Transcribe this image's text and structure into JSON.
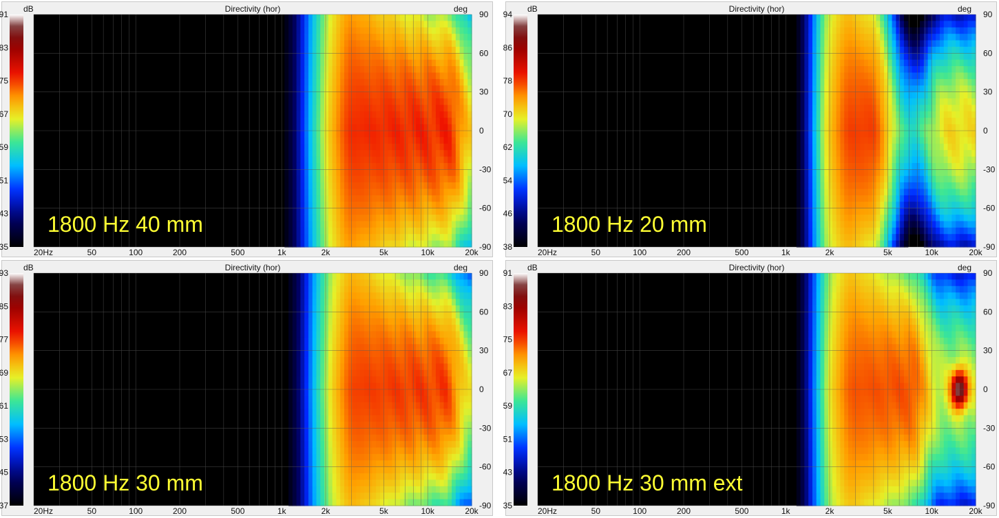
{
  "chart_data": [
    {
      "type": "heatmap",
      "title": "Directivity (hor)",
      "label": "1800 Hz 40 mm",
      "colorbar": {
        "unit": "dB",
        "ticks": [
          91,
          83,
          75,
          67,
          59,
          51,
          43,
          35
        ],
        "range": [
          35,
          91
        ]
      },
      "x": {
        "scale": "log",
        "range": [
          20,
          20000
        ],
        "tick_values": [
          20,
          50,
          100,
          200,
          500,
          1000,
          2000,
          5000,
          10000,
          20000
        ],
        "tick_labels": [
          "20Hz",
          "50",
          "100",
          "200",
          "500",
          "1k",
          "2k",
          "5k",
          "10k",
          "20k"
        ]
      },
      "y": {
        "unit": "deg",
        "range": [
          -90,
          90
        ],
        "tick_values": [
          90,
          60,
          30,
          0,
          -30,
          -60,
          -90
        ],
        "tick_labels": [
          "90",
          "60",
          "30",
          "0",
          "-30",
          "-60",
          "-90"
        ]
      },
      "response": {
        "onset_hz": 950,
        "peak_from_hz": 2200,
        "peak_to_hz": 17000,
        "peak_db": 84,
        "beam_narrowing": 0.3,
        "hot_spot_hz": 0
      }
    },
    {
      "type": "heatmap",
      "title": "Directivity (hor)",
      "label": "1800 Hz 20 mm",
      "colorbar": {
        "unit": "dB",
        "ticks": [
          94,
          86,
          78,
          70,
          62,
          54,
          46,
          38
        ],
        "range": [
          38,
          94
        ]
      },
      "x": {
        "scale": "log",
        "range": [
          20,
          20000
        ],
        "tick_values": [
          20,
          50,
          100,
          200,
          500,
          1000,
          2000,
          5000,
          10000,
          20000
        ],
        "tick_labels": [
          "20Hz",
          "50",
          "100",
          "200",
          "500",
          "1k",
          "2k",
          "5k",
          "10k",
          "20k"
        ]
      },
      "y": {
        "unit": "deg",
        "range": [
          -90,
          90
        ],
        "tick_values": [
          90,
          60,
          30,
          0,
          -30,
          -60,
          -90
        ],
        "tick_labels": [
          "90",
          "60",
          "30",
          "0",
          "-30",
          "-60",
          "-90"
        ]
      },
      "response": {
        "onset_hz": 1100,
        "peak_from_hz": 2000,
        "peak_to_hz": 4800,
        "peak_db": 86,
        "beam_narrowing": 0.5,
        "notch_hz": 7500,
        "second_lobe_hz": 15000,
        "hot_spot_hz": 0
      }
    },
    {
      "type": "heatmap",
      "title": "Directivity (hor)",
      "label": "1800 Hz 30 mm",
      "colorbar": {
        "unit": "dB",
        "ticks": [
          93,
          85,
          77,
          69,
          61,
          53,
          45,
          37
        ],
        "range": [
          37,
          93
        ]
      },
      "x": {
        "scale": "log",
        "range": [
          20,
          20000
        ],
        "tick_values": [
          20,
          50,
          100,
          200,
          500,
          1000,
          2000,
          5000,
          10000,
          20000
        ],
        "tick_labels": [
          "20Hz",
          "50",
          "100",
          "200",
          "500",
          "1k",
          "2k",
          "5k",
          "10k",
          "20k"
        ]
      },
      "y": {
        "unit": "deg",
        "range": [
          -90,
          90
        ],
        "tick_values": [
          90,
          60,
          30,
          0,
          -30,
          -60,
          -90
        ],
        "tick_labels": [
          "90",
          "60",
          "30",
          "0",
          "-30",
          "-60",
          "-90"
        ]
      },
      "response": {
        "onset_hz": 1000,
        "peak_from_hz": 2300,
        "peak_to_hz": 16000,
        "peak_db": 85,
        "beam_narrowing": 0.4,
        "hot_spot_hz": 0
      }
    },
    {
      "type": "heatmap",
      "title": "Directivity (hor)",
      "label": "1800 Hz 30 mm ext",
      "colorbar": {
        "unit": "dB",
        "ticks": [
          91,
          83,
          75,
          67,
          59,
          51,
          43,
          35
        ],
        "range": [
          35,
          91
        ]
      },
      "x": {
        "scale": "log",
        "range": [
          20,
          20000
        ],
        "tick_values": [
          20,
          50,
          100,
          200,
          500,
          1000,
          2000,
          5000,
          10000,
          20000
        ],
        "tick_labels": [
          "20Hz",
          "50",
          "100",
          "200",
          "500",
          "1k",
          "2k",
          "5k",
          "10k",
          "20k"
        ]
      },
      "y": {
        "unit": "deg",
        "range": [
          -90,
          90
        ],
        "tick_values": [
          90,
          60,
          30,
          0,
          -30,
          -60,
          -90
        ],
        "tick_labels": [
          "90",
          "60",
          "30",
          "0",
          "-30",
          "-60",
          "-90"
        ]
      },
      "response": {
        "onset_hz": 1100,
        "peak_from_hz": 2100,
        "peak_to_hz": 9000,
        "peak_db": 82,
        "beam_narrowing": 0.45,
        "hot_spot_hz": 15500,
        "hot_spot_db": 90
      }
    }
  ]
}
